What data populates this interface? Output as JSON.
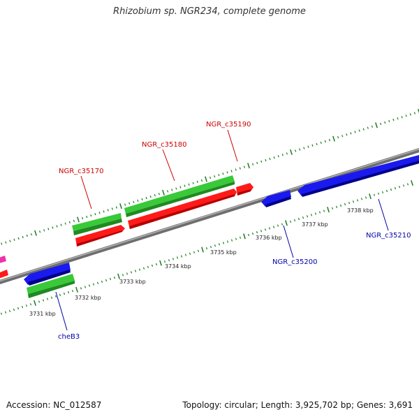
{
  "title": "Rhizobium sp. NGR234, complete genome",
  "footer": {
    "accession": "Accession: NC_012587",
    "summary": "Topology: circular; Length: 3,925,702 bp; Genes: 3,691"
  },
  "colors": {
    "backbone": "#8c8c8c",
    "tick": "#1e7a1e",
    "label_forward": "#cc0000",
    "label_reverse": "#0000aa",
    "gene_red": "#ff1a1a",
    "gene_green": "#39c939",
    "gene_blue": "#1a1aee",
    "gene_magenta": "#ee33aa"
  },
  "scale": {
    "ticks": [
      {
        "label": "3731 kbp"
      },
      {
        "label": "3732 kbp"
      },
      {
        "label": "3733 kbp"
      },
      {
        "label": "3734 kbp"
      },
      {
        "label": "3735 kbp"
      },
      {
        "label": "3736 kbp"
      },
      {
        "label": "3737 kbp"
      },
      {
        "label": "3738 kbp"
      }
    ]
  },
  "gene_labels": [
    {
      "text": "NGR_c35170",
      "strand": "forward"
    },
    {
      "text": "NGR_c35180",
      "strand": "forward"
    },
    {
      "text": "NGR_c35190",
      "strand": "forward"
    },
    {
      "text": "NGR_c35200",
      "strand": "reverse"
    },
    {
      "text": "NGR_c35210",
      "strand": "reverse"
    },
    {
      "text": "cheB3",
      "strand": "reverse"
    }
  ]
}
